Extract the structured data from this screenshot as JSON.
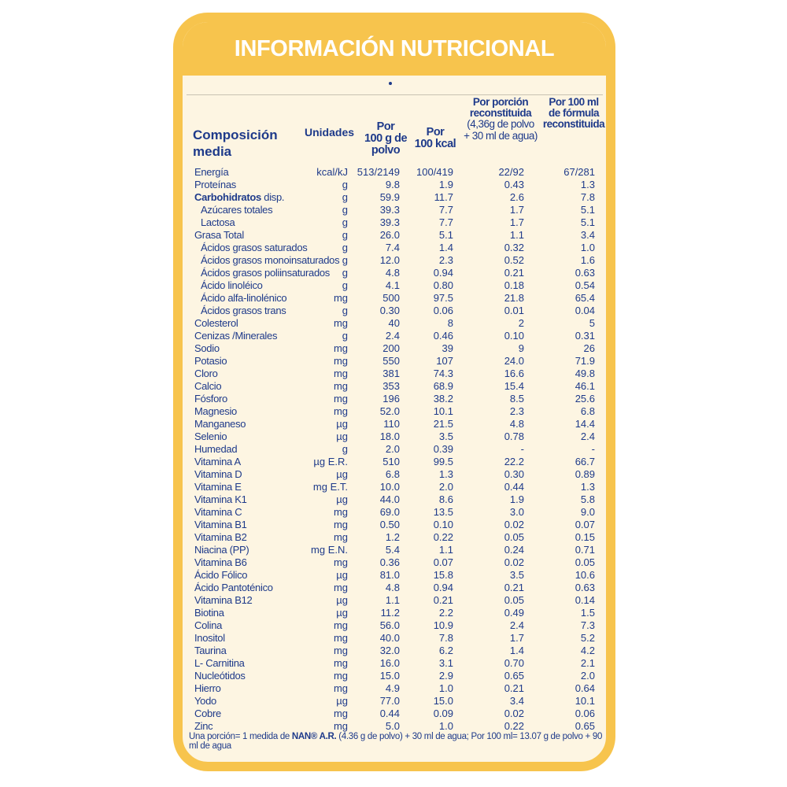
{
  "title": "INFORMACIÓN NUTRICIONAL",
  "headers": {
    "composicion": [
      "Composición",
      "media"
    ],
    "unidades": "Unidades",
    "col1": [
      "Por",
      "100 g de",
      "polvo"
    ],
    "col2": [
      "Por",
      "100 kcal"
    ],
    "col3": [
      "Por porción",
      "reconstituida",
      "(4,36g de polvo",
      "+ 30 ml de agua)"
    ],
    "col4": [
      "Por 100 ml",
      "de fórmula",
      "reconstituida"
    ]
  },
  "rows": [
    {
      "name": "Energía",
      "unit": "kcal/kJ",
      "v1": "513/2149",
      "v2": "100/419",
      "v3": "22/92",
      "v4": "67/281"
    },
    {
      "name": "Proteínas",
      "unit": "g",
      "v1": "9.8",
      "v2": "1.9",
      "v3": "0.43",
      "v4": "1.3"
    },
    {
      "name": "Carbohidratos",
      "name_suffix": " disp.",
      "unit": "g",
      "v1": "59.9",
      "v2": "11.7",
      "v3": "2.6",
      "v4": "7.8"
    },
    {
      "name": "Azúcares totales",
      "indent": true,
      "unit": "g",
      "v1": "39.3",
      "v2": "7.7",
      "v3": "1.7",
      "v4": "5.1"
    },
    {
      "name": "Lactosa",
      "indent": true,
      "unit": "g",
      "v1": "39.3",
      "v2": "7.7",
      "v3": "1.7",
      "v4": "5.1"
    },
    {
      "name": "Grasa Total",
      "unit": "g",
      "v1": "26.0",
      "v2": "5.1",
      "v3": "1.1",
      "v4": "3.4"
    },
    {
      "name": "Ácidos grasos saturados",
      "indent": true,
      "unit": "g",
      "v1": "7.4",
      "v2": "1.4",
      "v3": "0.32",
      "v4": "1.0"
    },
    {
      "name": "Ácidos grasos monoinsaturados",
      "indent": true,
      "unit": "g",
      "v1": "12.0",
      "v2": "2.3",
      "v3": "0.52",
      "v4": "1.6"
    },
    {
      "name": "Ácidos grasos poliinsaturados",
      "indent": true,
      "unit": "g",
      "v1": "4.8",
      "v2": "0.94",
      "v3": "0.21",
      "v4": "0.63"
    },
    {
      "name": "Ácido linoléico",
      "indent": true,
      "unit": "g",
      "v1": "4.1",
      "v2": "0.80",
      "v3": "0.18",
      "v4": "0.54"
    },
    {
      "name": "Ácido alfa-linolénico",
      "indent": true,
      "unit": "mg",
      "v1": "500",
      "v2": "97.5",
      "v3": "21.8",
      "v4": "65.4"
    },
    {
      "name": "Ácidos grasos trans",
      "indent": true,
      "unit": "g",
      "v1": "0.30",
      "v2": "0.06",
      "v3": "0.01",
      "v4": "0.04"
    },
    {
      "name": "Colesterol",
      "unit": "mg",
      "v1": "40",
      "v2": "8",
      "v3": "2",
      "v4": "5"
    },
    {
      "name": "Cenizas /Minerales",
      "unit": "g",
      "v1": "2.4",
      "v2": "0.46",
      "v3": "0.10",
      "v4": "0.31"
    },
    {
      "name": "Sodio",
      "unit": "mg",
      "v1": "200",
      "v2": "39",
      "v3": "9",
      "v4": "26"
    },
    {
      "name": "Potasio",
      "unit": "mg",
      "v1": "550",
      "v2": "107",
      "v3": "24.0",
      "v4": "71.9"
    },
    {
      "name": "Cloro",
      "unit": "mg",
      "v1": "381",
      "v2": "74.3",
      "v3": "16.6",
      "v4": "49.8"
    },
    {
      "name": "Calcio",
      "unit": "mg",
      "v1": "353",
      "v2": "68.9",
      "v3": "15.4",
      "v4": "46.1"
    },
    {
      "name": "Fósforo",
      "unit": "mg",
      "v1": "196",
      "v2": "38.2",
      "v3": "8.5",
      "v4": "25.6"
    },
    {
      "name": "Magnesio",
      "unit": "mg",
      "v1": "52.0",
      "v2": "10.1",
      "v3": "2.3",
      "v4": "6.8"
    },
    {
      "name": "Manganeso",
      "unit": "µg",
      "v1": "110",
      "v2": "21.5",
      "v3": "4.8",
      "v4": "14.4"
    },
    {
      "name": "Selenio",
      "unit": "µg",
      "v1": "18.0",
      "v2": "3.5",
      "v3": "0.78",
      "v4": "2.4"
    },
    {
      "name": "Humedad",
      "unit": "g",
      "v1": "2.0",
      "v2": "0.39",
      "v3": "-",
      "v4": "-"
    },
    {
      "name": "Vitamina A",
      "unit": "µg E.R.",
      "v1": "510",
      "v2": "99.5",
      "v3": "22.2",
      "v4": "66.7"
    },
    {
      "name": "Vitamina D",
      "unit": "µg",
      "v1": "6.8",
      "v2": "1.3",
      "v3": "0.30",
      "v4": "0.89"
    },
    {
      "name": "Vitamina E",
      "unit": "mg E.T.",
      "v1": "10.0",
      "v2": "2.0",
      "v3": "0.44",
      "v4": "1.3"
    },
    {
      "name": "Vitamina K1",
      "unit": "µg",
      "v1": "44.0",
      "v2": "8.6",
      "v3": "1.9",
      "v4": "5.8"
    },
    {
      "name": "Vitamina C",
      "unit": "mg",
      "v1": "69.0",
      "v2": "13.5",
      "v3": "3.0",
      "v4": "9.0"
    },
    {
      "name": "Vitamina B1",
      "unit": "mg",
      "v1": "0.50",
      "v2": "0.10",
      "v3": "0.02",
      "v4": "0.07"
    },
    {
      "name": "Vitamina B2",
      "unit": "mg",
      "v1": "1.2",
      "v2": "0.22",
      "v3": "0.05",
      "v4": "0.15"
    },
    {
      "name": "Niacina (PP)",
      "unit": "mg E.N.",
      "v1": "5.4",
      "v2": "1.1",
      "v3": "0.24",
      "v4": "0.71"
    },
    {
      "name": "Vitamina B6",
      "unit": "mg",
      "v1": "0.36",
      "v2": "0.07",
      "v3": "0.02",
      "v4": "0.05"
    },
    {
      "name": "Ácido Fólico",
      "unit": "µg",
      "v1": "81.0",
      "v2": "15.8",
      "v3": "3.5",
      "v4": "10.6"
    },
    {
      "name": "Ácido Pantoténico",
      "unit": "mg",
      "v1": "4.8",
      "v2": "0.94",
      "v3": "0.21",
      "v4": "0.63"
    },
    {
      "name": "Vitamina B12",
      "unit": "µg",
      "v1": "1.1",
      "v2": "0.21",
      "v3": "0.05",
      "v4": "0.14"
    },
    {
      "name": "Biotina",
      "unit": "µg",
      "v1": "11.2",
      "v2": "2.2",
      "v3": "0.49",
      "v4": "1.5"
    },
    {
      "name": "Colina",
      "unit": "mg",
      "v1": "56.0",
      "v2": "10.9",
      "v3": "2.4",
      "v4": "7.3"
    },
    {
      "name": "Inositol",
      "unit": "mg",
      "v1": "40.0",
      "v2": "7.8",
      "v3": "1.7",
      "v4": "5.2"
    },
    {
      "name": "Taurina",
      "unit": "mg",
      "v1": "32.0",
      "v2": "6.2",
      "v3": "1.4",
      "v4": "4.2"
    },
    {
      "name": "L- Carnitina",
      "unit": "mg",
      "v1": "16.0",
      "v2": "3.1",
      "v3": "0.70",
      "v4": "2.1"
    },
    {
      "name": "Nucleótidos",
      "unit": "mg",
      "v1": "15.0",
      "v2": "2.9",
      "v3": "0.65",
      "v4": "2.0"
    },
    {
      "name": "Hierro",
      "unit": "mg",
      "v1": "4.9",
      "v2": "1.0",
      "v3": "0.21",
      "v4": "0.64"
    },
    {
      "name": "Yodo",
      "unit": "µg",
      "v1": "77.0",
      "v2": "15.0",
      "v3": "3.4",
      "v4": "10.1"
    },
    {
      "name": "Cobre",
      "unit": "mg",
      "v1": "0.44",
      "v2": "0.09",
      "v3": "0.02",
      "v4": "0.06"
    },
    {
      "name": "Zinc",
      "unit": "mg",
      "v1": "5.0",
      "v2": "1.0",
      "v3": "0.22",
      "v4": "0.65"
    }
  ],
  "footnote": {
    "pre": "Una porción= 1 medida de ",
    "brand": "NAN® A.R.",
    "post": " (4.36 g de polvo) + 30 ml de agua; Por 100 ml= 13.07 g de polvo + 90 ml de agua"
  },
  "colors": {
    "frame": "#f7c44d",
    "panel": "#fdf5e2",
    "text": "#1e3a8a"
  }
}
